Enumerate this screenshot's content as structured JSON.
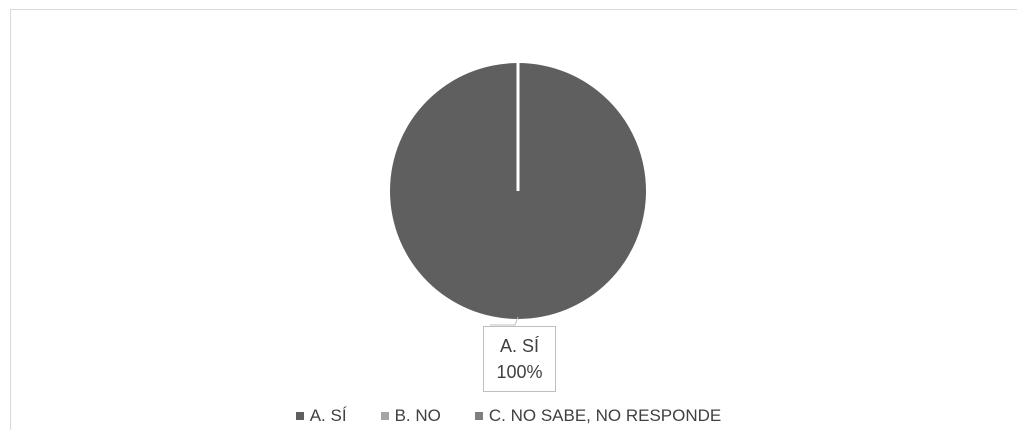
{
  "chart_data": {
    "type": "pie",
    "title": "",
    "categories": [
      "A. SÍ",
      "B. NO",
      "C. NO SABE, NO RESPONDE"
    ],
    "values": [
      100,
      0,
      0
    ],
    "colors": [
      "#5f5f5f",
      "#a5a5a5",
      "#7f7f7f"
    ],
    "data_labels": [
      {
        "category": "A. SÍ",
        "value_text": "100%"
      }
    ],
    "legend_position": "bottom"
  }
}
